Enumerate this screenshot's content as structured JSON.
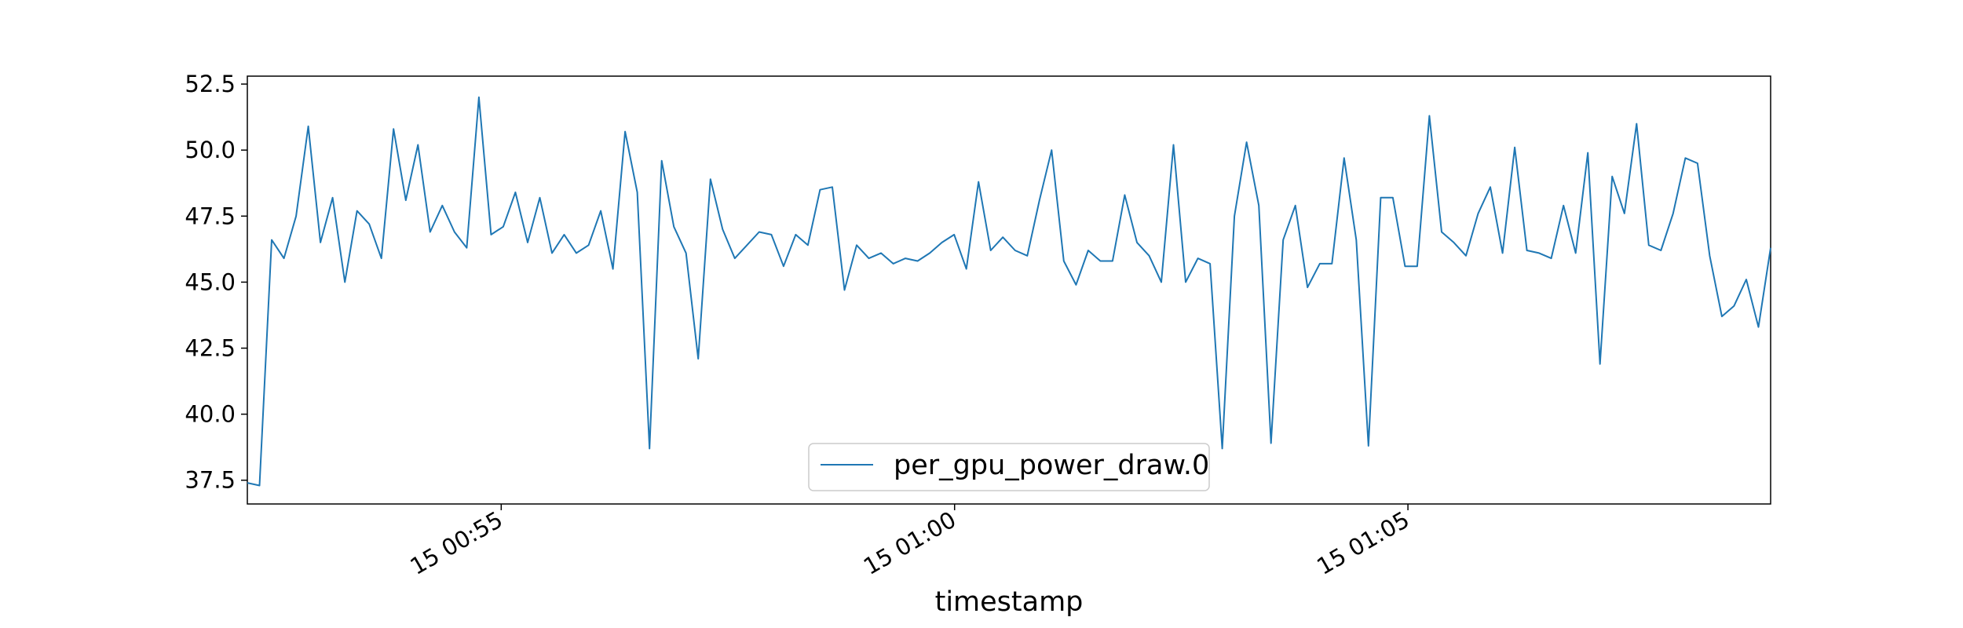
{
  "chart_data": {
    "type": "line",
    "title": "",
    "xlabel": "timestamp",
    "ylabel": "",
    "x_axis_type": "time",
    "x_range_minutes": [
      -7.8,
      9.0
    ],
    "ylim": [
      36.6,
      52.8
    ],
    "y_ticks": [
      37.5,
      40.0,
      42.5,
      45.0,
      47.5,
      50.0,
      52.5
    ],
    "x_ticks": [
      {
        "minutes": -5,
        "label": "15 00:55"
      },
      {
        "minutes": 0,
        "label": "15 01:00"
      },
      {
        "minutes": 5,
        "label": "15 01:05"
      }
    ],
    "grid": false,
    "legend": {
      "position": "lower center",
      "entries": [
        "per_gpu_power_draw.0"
      ]
    },
    "colors": {
      "series": "#1f77b4",
      "frame": "#000000",
      "legend_border": "#cccccc"
    },
    "series": [
      {
        "name": "per_gpu_power_draw.0",
        "y": [
          37.4,
          37.3,
          46.6,
          45.9,
          47.5,
          50.9,
          46.5,
          48.2,
          45.0,
          47.7,
          47.2,
          45.9,
          50.8,
          48.1,
          50.2,
          46.9,
          47.9,
          46.9,
          46.3,
          52.0,
          46.8,
          47.1,
          48.4,
          46.5,
          48.2,
          46.1,
          46.8,
          46.1,
          46.4,
          47.7,
          45.5,
          50.7,
          48.4,
          38.7,
          49.6,
          47.1,
          46.1,
          42.1,
          48.9,
          47.0,
          45.9,
          46.4,
          46.9,
          46.8,
          45.6,
          46.8,
          46.4,
          48.5,
          48.6,
          44.7,
          46.4,
          45.9,
          46.1,
          45.7,
          45.9,
          45.8,
          46.1,
          46.5,
          46.8,
          45.5,
          48.8,
          46.2,
          46.7,
          46.2,
          46.0,
          48.1,
          50.0,
          45.8,
          44.9,
          46.2,
          45.8,
          45.8,
          48.3,
          46.5,
          46.0,
          45.0,
          50.2,
          45.0,
          45.9,
          45.7,
          38.7,
          47.5,
          50.3,
          47.9,
          38.9,
          46.6,
          47.9,
          44.8,
          45.7,
          45.7,
          49.7,
          46.6,
          38.8,
          48.2,
          48.2,
          45.6,
          45.6,
          51.3,
          46.9,
          46.5,
          46.0,
          47.6,
          48.6,
          46.1,
          50.1,
          46.2,
          46.1,
          45.9,
          47.9,
          46.1,
          49.9,
          41.9,
          49.0,
          47.6,
          51.0,
          46.4,
          46.2,
          47.6,
          49.7,
          49.5,
          46.0,
          43.7,
          44.1,
          45.1,
          43.3,
          46.3
        ]
      }
    ]
  }
}
